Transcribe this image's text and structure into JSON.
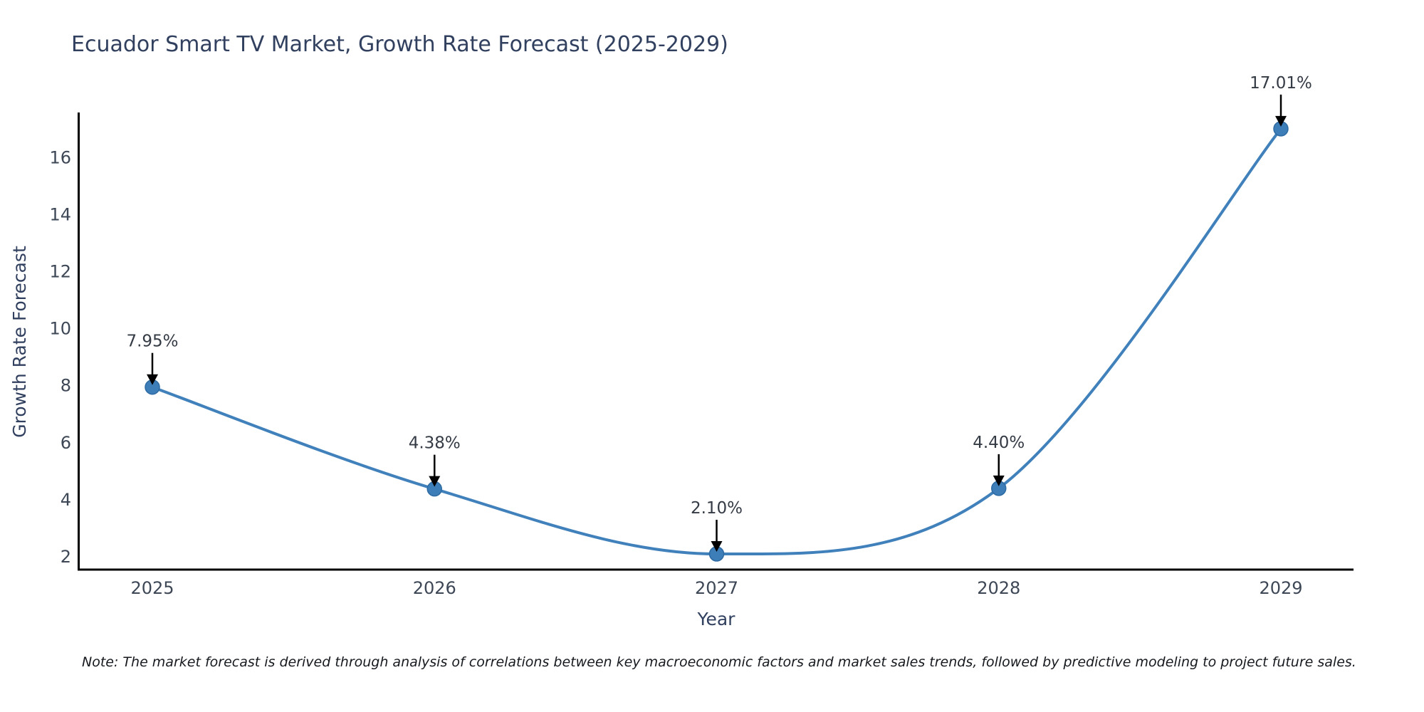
{
  "title": "Ecuador Smart TV Market, Growth Rate Forecast (2025-2029)",
  "note": "Note: The market forecast is derived through analysis of correlations between key macroeconomic factors and market sales trends, followed by predictive modeling to project future sales.",
  "chart_data": {
    "type": "line",
    "title": "Ecuador Smart TV Market, Growth Rate Forecast (2025-2029)",
    "xlabel": "Year",
    "ylabel": "Growth Rate Forecast",
    "x": [
      2025,
      2026,
      2027,
      2028,
      2029
    ],
    "categories": [
      "2025",
      "2026",
      "2027",
      "2028",
      "2029"
    ],
    "series": [
      {
        "name": "Growth Rate Forecast",
        "values": [
          7.95,
          4.38,
          2.1,
          4.4,
          17.01
        ]
      }
    ],
    "point_labels": [
      "7.95%",
      "4.38%",
      "2.10%",
      "4.40%",
      "17.01%"
    ],
    "yticks": [
      2,
      4,
      6,
      8,
      10,
      12,
      14,
      16
    ],
    "ylim": [
      1.55,
      17.55
    ],
    "grid": false,
    "legend": "none",
    "line_style": "smooth-spline",
    "annotation_style": "value-labels-with-down-arrows",
    "colors": {
      "line": "#4181bb",
      "marker_fill": "#3d7db8",
      "marker_edge": "#2e6ba3",
      "annotation_arrow": "#000000",
      "axis_spine": "#000000",
      "title_text": "#31405f",
      "tick_text": "#3d4756",
      "annotation_text": "#353b45",
      "note_text": "#16191e",
      "background": "#ffffff"
    }
  }
}
